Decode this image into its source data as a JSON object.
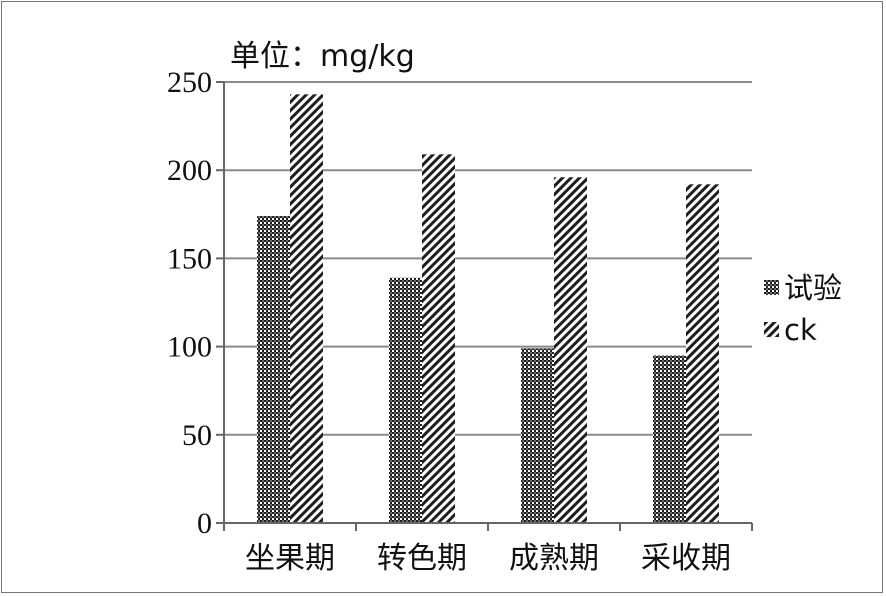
{
  "chart_data": {
    "type": "bar",
    "unit_label": "单位：mg/kg",
    "categories": [
      "坐果期",
      "转色期",
      "成熟期",
      "采收期"
    ],
    "series": [
      {
        "name": "试验",
        "values": [
          174,
          139,
          99,
          95
        ],
        "pattern": "checker"
      },
      {
        "name": "ck",
        "values": [
          243,
          209,
          196,
          192
        ],
        "pattern": "diagonal"
      }
    ],
    "ylim": [
      0,
      250
    ],
    "yticks": [
      0,
      50,
      100,
      150,
      200,
      250
    ],
    "grid": true,
    "legend_position": "right",
    "colors": {
      "grid": "#8a8a8a",
      "axis": "#666666",
      "bar_dark": "#1e1e1e",
      "bar_light": "#ffffff"
    }
  }
}
